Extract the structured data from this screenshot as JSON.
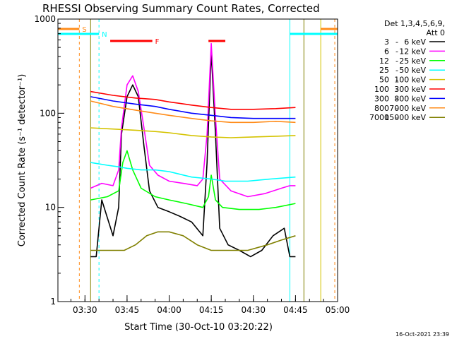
{
  "chart_data": {
    "type": "line",
    "title": "RHESSI Observing Summary Count Rates, Corrected",
    "xlabel": "Start Time (30-Oct-10 03:20:22)",
    "ylabel": "Corrected Count Rate (s⁻¹ detector⁻¹)",
    "y_scale": "log",
    "ylim": [
      1,
      1000
    ],
    "y_ticks": [
      {
        "value": 1,
        "label": "1"
      },
      {
        "value": 10,
        "label": "10"
      },
      {
        "value": 100,
        "label": "100"
      },
      {
        "value": 1000,
        "label": "1000"
      }
    ],
    "x_time_range": [
      "03:20:22",
      "05:00:00"
    ],
    "x_ticks": [
      "03:30",
      "03:45",
      "04:00",
      "04:15",
      "04:30",
      "04:45",
      "05:00"
    ],
    "legend_header": [
      "Det 1,3,4,5,6,9,",
      "Att 0"
    ],
    "legend_position": "right",
    "timestamp": "16-Oct-2021 23:39",
    "series": [
      {
        "name": "3 - 6 keV",
        "color": "#000000",
        "x": [
          "03:32:00",
          "03:34:00",
          "03:36:00",
          "03:40:00",
          "03:42:00",
          "03:43:00",
          "03:45:00",
          "03:47:00",
          "03:49:00",
          "03:51:00",
          "03:53:00",
          "03:56:00",
          "04:00:00",
          "04:04:00",
          "04:08:00",
          "04:12:00",
          "04:13:30",
          "04:15:00",
          "04:16:30",
          "04:18:00",
          "04:21:00",
          "04:25:00",
          "04:29:00",
          "04:33:00",
          "04:37:00",
          "04:41:00",
          "04:43:00",
          "04:45:00"
        ],
        "y": [
          3,
          3,
          12,
          5,
          10,
          60,
          150,
          200,
          150,
          45,
          15,
          10,
          9,
          8,
          7,
          5,
          30,
          450,
          60,
          6,
          4,
          3.5,
          3,
          3.5,
          5,
          6,
          3,
          3
        ]
      },
      {
        "name": "6 - 12 keV",
        "color": "#ff00ff",
        "x": [
          "03:32:00",
          "03:36:00",
          "03:40:00",
          "03:42:00",
          "03:43:00",
          "03:45:00",
          "03:47:00",
          "03:49:00",
          "03:51:00",
          "03:53:00",
          "03:56:00",
          "04:00:00",
          "04:05:00",
          "04:10:00",
          "04:12:00",
          "04:13:30",
          "04:15:00",
          "04:16:30",
          "04:18:00",
          "04:22:00",
          "04:28:00",
          "04:34:00",
          "04:40:00",
          "04:43:00",
          "04:45:00"
        ],
        "y": [
          16,
          18,
          17,
          25,
          70,
          200,
          250,
          170,
          70,
          28,
          22,
          19,
          18,
          17,
          20,
          60,
          550,
          90,
          20,
          15,
          13,
          14,
          16,
          17,
          17
        ]
      },
      {
        "name": "12 - 25 keV",
        "color": "#00ff00",
        "x": [
          "03:32:00",
          "03:38:00",
          "03:42:00",
          "03:43:30",
          "03:45:00",
          "03:47:00",
          "03:50:00",
          "03:55:00",
          "04:00:00",
          "04:06:00",
          "04:12:00",
          "04:14:00",
          "04:15:00",
          "04:16:30",
          "04:19:00",
          "04:25:00",
          "04:32:00",
          "04:38:00",
          "04:45:00"
        ],
        "y": [
          12,
          13,
          15,
          30,
          40,
          25,
          16,
          13,
          12,
          11,
          10,
          13,
          22,
          12,
          10,
          9.5,
          9.5,
          10,
          11
        ]
      },
      {
        "name": "25 - 50 keV",
        "color": "#00ffff",
        "x": [
          "03:32:00",
          "03:38:00",
          "03:42:00",
          "03:45:00",
          "03:50:00",
          "03:55:00",
          "04:00:00",
          "04:08:00",
          "04:15:00",
          "04:20:00",
          "04:28:00",
          "04:36:00",
          "04:45:00"
        ],
        "y": [
          30,
          28,
          27,
          26,
          25,
          25,
          24,
          21,
          20,
          19,
          19,
          20,
          21
        ]
      },
      {
        "name": "50 - 100 keV",
        "color": "#d4c300",
        "x": [
          "03:32:00",
          "03:40:00",
          "03:48:00",
          "03:55:00",
          "04:00:00",
          "04:08:00",
          "04:15:00",
          "04:22:00",
          "04:30:00",
          "04:38:00",
          "04:45:00"
        ],
        "y": [
          70,
          68,
          66,
          64,
          62,
          58,
          56,
          55,
          56,
          57,
          58
        ]
      },
      {
        "name": "100 - 300 keV",
        "color": "#ff0000",
        "x": [
          "03:32:00",
          "03:40:00",
          "03:48:00",
          "03:55:00",
          "04:00:00",
          "04:08:00",
          "04:15:00",
          "04:22:00",
          "04:30:00",
          "04:38:00",
          "04:45:00"
        ],
        "y": [
          170,
          155,
          145,
          140,
          132,
          122,
          115,
          110,
          110,
          112,
          115
        ]
      },
      {
        "name": "300 - 800 keV",
        "color": "#0000ff",
        "x": [
          "03:32:00",
          "03:40:00",
          "03:48:00",
          "03:55:00",
          "04:00:00",
          "04:08:00",
          "04:15:00",
          "04:22:00",
          "04:30:00",
          "04:38:00",
          "04:45:00"
        ],
        "y": [
          150,
          135,
          125,
          118,
          110,
          100,
          95,
          90,
          88,
          88,
          88
        ]
      },
      {
        "name": "800 - 7000 keV",
        "color": "#ff8c1a",
        "x": [
          "03:32:00",
          "03:40:00",
          "03:48:00",
          "03:55:00",
          "04:00:00",
          "04:08:00",
          "04:15:00",
          "04:22:00",
          "04:30:00",
          "04:38:00",
          "04:45:00"
        ],
        "y": [
          135,
          118,
          108,
          100,
          95,
          88,
          83,
          80,
          80,
          82,
          80
        ]
      },
      {
        "name": "7000 - 15000 keV",
        "color": "#808000",
        "x": [
          "03:32:00",
          "03:38:00",
          "03:44:00",
          "03:48:00",
          "03:52:00",
          "03:56:00",
          "04:00:00",
          "04:05:00",
          "04:10:00",
          "04:15:00",
          "04:20:00",
          "04:28:00",
          "04:35:00",
          "04:40:00",
          "04:45:00"
        ],
        "y": [
          3.5,
          3.5,
          3.5,
          4,
          5,
          5.5,
          5.5,
          5,
          4,
          3.5,
          3.5,
          3.5,
          4,
          4.5,
          5
        ]
      }
    ],
    "flag_bars": [
      {
        "label": "S",
        "color": "#ff8c1a",
        "start": "03:20:22",
        "end": "03:28:00"
      },
      {
        "label": "N",
        "color": "#00ffff",
        "start": "03:20:22",
        "end": "03:35:00"
      },
      {
        "label": "F",
        "color": "#ff0000",
        "start": "03:39:00",
        "end": "03:54:00"
      },
      {
        "label": "",
        "color": "#ff0000",
        "start": "04:14:00",
        "end": "04:20:00"
      },
      {
        "label": "",
        "color": "#00ffff",
        "start": "04:43:00",
        "end": "05:00:00"
      },
      {
        "label": "",
        "color": "#ff8c1a",
        "start": "04:54:00",
        "end": "05:00:00"
      }
    ],
    "vertical_markers": [
      {
        "time": "03:28:00",
        "color": "#ff8c1a",
        "style": "dashed"
      },
      {
        "time": "03:35:00",
        "color": "#00ffff",
        "style": "dashed"
      },
      {
        "time": "03:32:00",
        "color": "#808000",
        "style": "solid"
      },
      {
        "time": "04:43:00",
        "color": "#00ffff",
        "style": "solid"
      },
      {
        "time": "04:48:00",
        "color": "#808000",
        "style": "solid"
      },
      {
        "time": "04:54:00",
        "color": "#d4c300",
        "style": "solid"
      },
      {
        "time": "04:59:00",
        "color": "#ff8c1a",
        "style": "dashed"
      }
    ]
  }
}
